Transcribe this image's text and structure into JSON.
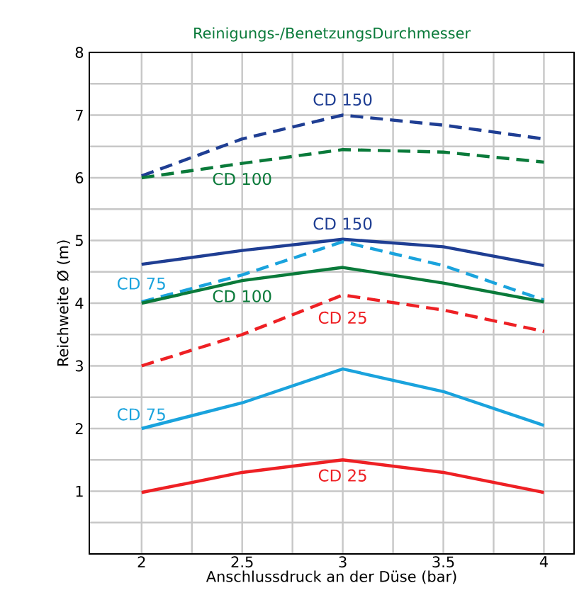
{
  "chart_data": {
    "type": "line",
    "title": "Reinigungs-/BenetzungsDurchmesser",
    "xlabel": "Anschlussdruck an der Düse (bar)",
    "ylabel": "Reichweite Ø (m)",
    "x": [
      2,
      2.5,
      3,
      3.5,
      4
    ],
    "xlim": [
      1.74,
      4.15
    ],
    "ylim": [
      0,
      8
    ],
    "xticks": [
      2,
      2.5,
      3,
      3.5,
      4
    ],
    "yticks": [
      {
        "value": 0,
        "label": null
      },
      1,
      2,
      3,
      4,
      5,
      6,
      7,
      8
    ],
    "grid": true,
    "marker": "none",
    "series": [
      {
        "name": "CD 150",
        "color": "#1f3e93",
        "line_style": "dashed",
        "values": [
          6.03,
          6.62,
          7.0,
          6.84,
          6.62
        ]
      },
      {
        "name": "CD 100",
        "color": "#0a7a3a",
        "line_style": "dashed",
        "values": [
          6.0,
          6.23,
          6.45,
          6.41,
          6.25
        ]
      },
      {
        "name": "CD 150",
        "color": "#1f3e93",
        "line_style": "solid",
        "values": [
          4.62,
          4.84,
          5.02,
          4.9,
          4.6
        ]
      },
      {
        "name": "CD 75",
        "color": "#1aa3dd",
        "line_style": "dashed",
        "values": [
          4.02,
          4.45,
          4.98,
          4.6,
          4.05
        ]
      },
      {
        "name": "CD 100",
        "color": "#0a7a3a",
        "line_style": "solid",
        "values": [
          4.0,
          4.36,
          4.57,
          4.32,
          4.02
        ]
      },
      {
        "name": "CD 25",
        "color": "#ee2024",
        "line_style": "dashed",
        "values": [
          3.0,
          3.5,
          4.13,
          3.89,
          3.55
        ]
      },
      {
        "name": "CD 75",
        "color": "#1aa3dd",
        "line_style": "solid",
        "values": [
          2.0,
          2.41,
          2.95,
          2.59,
          2.05
        ]
      },
      {
        "name": "CD 25",
        "color": "#ee2024",
        "line_style": "solid",
        "values": [
          0.98,
          1.3,
          1.5,
          1.3,
          0.98
        ]
      }
    ]
  }
}
